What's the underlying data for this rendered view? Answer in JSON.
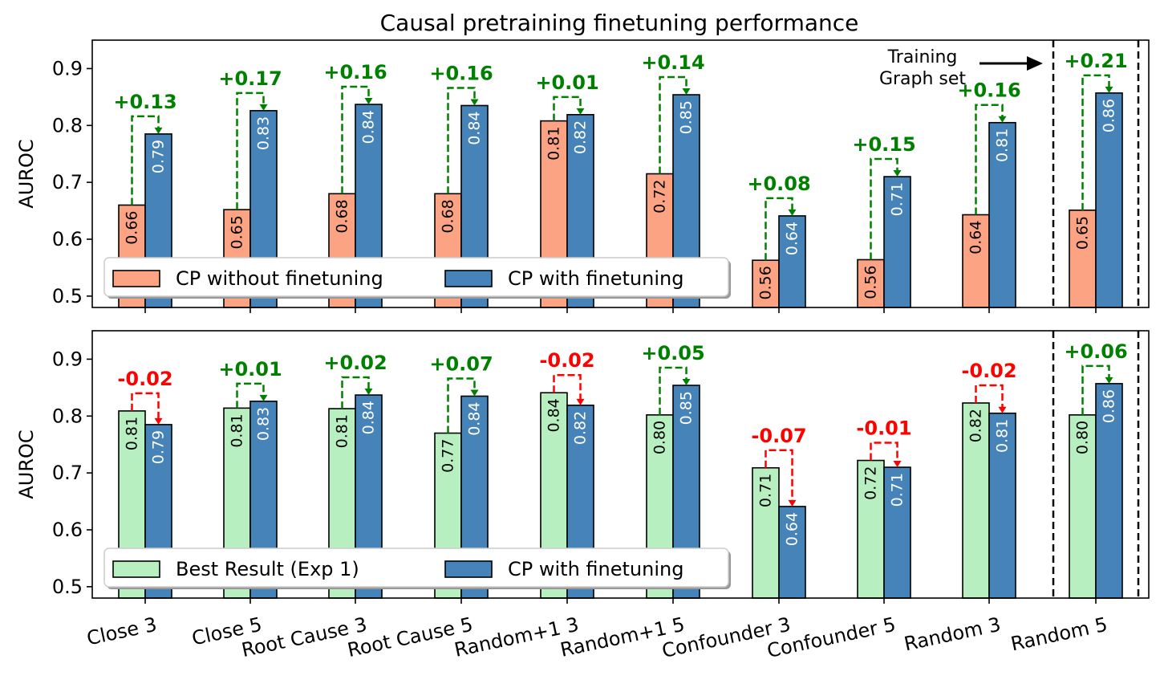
{
  "chart_data": {
    "title": "Causal pretraining finetuning performance",
    "type": "bar",
    "categories": [
      "Close 3",
      "Close 5",
      "Root Cause 3",
      "Root Cause 5",
      "Random+1 3",
      "Random+1 5",
      "Confounder 3",
      "Confounder 5",
      "Random 3",
      "Random 5"
    ],
    "annotation": {
      "text_line1": "Training",
      "text_line2": "Graph set"
    },
    "panels": [
      {
        "ylabel": "AUROC",
        "ylim": [
          0.48,
          0.95
        ],
        "yticks": [
          "0.5",
          "0.6",
          "0.7",
          "0.8",
          "0.9"
        ],
        "series": [
          {
            "name": "CP without finetuning",
            "color": "#fca383",
            "values": [
              0.66,
              0.652,
              0.68,
              0.68,
              0.808,
              0.715,
              0.563,
              0.564,
              0.643,
              0.651
            ],
            "labels": [
              "0.66",
              "0.65",
              "0.68",
              "0.68",
              "0.81",
              "0.72",
              "0.56",
              "0.56",
              "0.64",
              "0.65"
            ]
          },
          {
            "name": "CP with finetuning",
            "color": "#4683b8",
            "values": [
              0.785,
              0.826,
              0.837,
              0.835,
              0.819,
              0.854,
              0.641,
              0.71,
              0.805,
              0.857
            ],
            "labels": [
              "0.79",
              "0.83",
              "0.84",
              "0.84",
              "0.82",
              "0.85",
              "0.64",
              "0.71",
              "0.81",
              "0.86"
            ]
          }
        ],
        "deltas": [
          "+0.13",
          "+0.17",
          "+0.16",
          "+0.16",
          "+0.01",
          "+0.14",
          "+0.08",
          "+0.15",
          "+0.16",
          "+0.21"
        ],
        "delta_colors": [
          "#008000",
          "#008000",
          "#008000",
          "#008000",
          "#008000",
          "#008000",
          "#008000",
          "#008000",
          "#008000",
          "#008000"
        ],
        "legend": "lower-left"
      },
      {
        "ylabel": "AUROC",
        "ylim": [
          0.48,
          0.95
        ],
        "yticks": [
          "0.5",
          "0.6",
          "0.7",
          "0.8",
          "0.9"
        ],
        "series": [
          {
            "name": "Best Result (Exp 1)",
            "color": "#b7efc0",
            "values": [
              0.809,
              0.814,
              0.813,
              0.77,
              0.841,
              0.802,
              0.709,
              0.722,
              0.823,
              0.802
            ],
            "labels": [
              "0.81",
              "0.81",
              "0.81",
              "0.77",
              "0.84",
              "0.80",
              "0.71",
              "0.72",
              "0.82",
              "0.80"
            ]
          },
          {
            "name": "CP with finetuning",
            "color": "#4683b8",
            "values": [
              0.785,
              0.826,
              0.837,
              0.835,
              0.819,
              0.854,
              0.641,
              0.71,
              0.805,
              0.857
            ],
            "labels": [
              "0.79",
              "0.83",
              "0.84",
              "0.84",
              "0.82",
              "0.85",
              "0.64",
              "0.71",
              "0.81",
              "0.86"
            ]
          }
        ],
        "deltas": [
          "-0.02",
          "+0.01",
          "+0.02",
          "+0.07",
          "-0.02",
          "+0.05",
          "-0.07",
          "-0.01",
          "-0.02",
          "+0.06"
        ],
        "delta_colors": [
          "#ff0000",
          "#008000",
          "#008000",
          "#008000",
          "#ff0000",
          "#008000",
          "#ff0000",
          "#ff0000",
          "#ff0000",
          "#008000"
        ],
        "legend": "lower-left"
      }
    ]
  }
}
